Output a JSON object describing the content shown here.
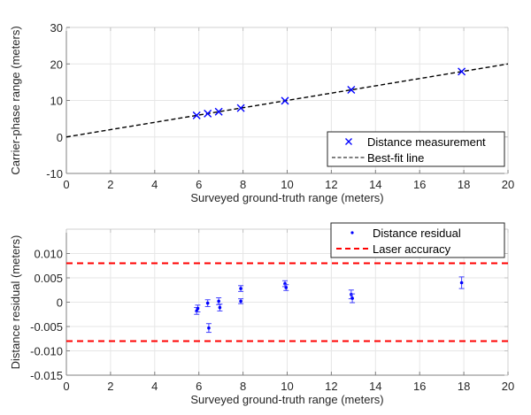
{
  "chart_data": [
    {
      "type": "scatter",
      "title": "",
      "xlabel": "Surveyed ground-truth range (meters)",
      "ylabel": "Carrier-phase range (meters)",
      "xlim": [
        0,
        20
      ],
      "ylim": [
        -10,
        30
      ],
      "xticks": [
        0,
        2,
        4,
        6,
        8,
        10,
        12,
        14,
        16,
        18,
        20
      ],
      "yticks": [
        -10,
        0,
        10,
        20,
        30
      ],
      "xtick_labels": [
        "0",
        "2",
        "4",
        "6",
        "8",
        "10",
        "12",
        "14",
        "16",
        "18",
        "20"
      ],
      "ytick_labels": [
        "-10",
        "0",
        "10",
        "20",
        "30"
      ],
      "grid": true,
      "legend_position": "bottom-right",
      "series": [
        {
          "name": "Distance measurement",
          "marker": "x",
          "color": "#0000ff",
          "x": [
            5.9,
            6.4,
            6.9,
            7.9,
            9.9,
            12.9,
            17.9
          ],
          "y": [
            5.9,
            6.4,
            6.9,
            7.9,
            9.9,
            12.9,
            17.9
          ]
        },
        {
          "name": "Best-fit line",
          "style": "dashed",
          "color": "#000000",
          "x": [
            0,
            20
          ],
          "y": [
            0,
            20
          ]
        }
      ]
    },
    {
      "type": "scatter",
      "title": "",
      "xlabel": "Surveyed ground-truth range (meters)",
      "ylabel": "Distance residual (meters)",
      "xlim": [
        0,
        20
      ],
      "ylim": [
        -0.015,
        0.015
      ],
      "xticks": [
        0,
        2,
        4,
        6,
        8,
        10,
        12,
        14,
        16,
        18,
        20
      ],
      "yticks": [
        -0.015,
        -0.01,
        -0.005,
        0,
        0.005,
        0.01
      ],
      "xtick_labels": [
        "0",
        "2",
        "4",
        "6",
        "8",
        "10",
        "12",
        "14",
        "16",
        "18",
        "20"
      ],
      "ytick_labels": [
        "-0.015",
        "-0.010",
        "-0.005",
        "0",
        "0.005",
        "0.010"
      ],
      "grid": true,
      "legend_position": "top-right",
      "series": [
        {
          "name": "Distance residual",
          "marker": "dot",
          "color": "#0000ff",
          "x": [
            5.9,
            5.95,
            6.4,
            6.45,
            6.9,
            6.95,
            7.9,
            7.9,
            9.9,
            9.95,
            12.9,
            12.95,
            17.9
          ],
          "y": [
            -0.0018,
            -0.0013,
            -0.0002,
            -0.0053,
            0.0002,
            -0.0011,
            0.0028,
            0.0002,
            0.0038,
            0.003,
            0.0016,
            0.0008,
            0.004
          ],
          "error": [
            0.0007,
            0.0007,
            0.0007,
            0.0009,
            0.0007,
            0.0007,
            0.0006,
            0.0005,
            0.0006,
            0.0006,
            0.0009,
            0.0009,
            0.0012
          ]
        },
        {
          "name": "Laser accuracy",
          "style": "dashed",
          "color": "#ff0000",
          "lines_y": [
            0.008,
            -0.008
          ]
        }
      ]
    }
  ]
}
